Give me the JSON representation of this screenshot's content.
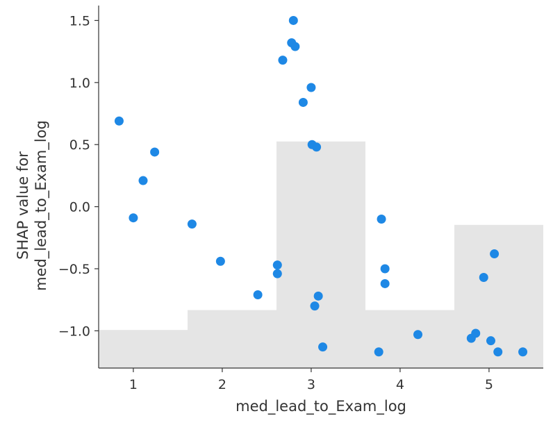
{
  "chart_data": {
    "type": "scatter",
    "title": "",
    "xlabel": "med_lead_to_Exam_log",
    "ylabel_lines": [
      "SHAP value for",
      "med_lead_to_Exam_log"
    ],
    "xlim": [
      0.61,
      5.61
    ],
    "ylim": [
      -1.3,
      1.62
    ],
    "x_ticks": [
      1,
      2,
      3,
      4,
      5
    ],
    "x_tick_labels": [
      "1",
      "2",
      "3",
      "4",
      "5"
    ],
    "y_ticks": [
      -1.0,
      -0.5,
      0.0,
      0.5,
      1.0,
      1.5
    ],
    "y_tick_labels": [
      "−1.0",
      "−0.5",
      "0.0",
      "0.5",
      "1.0",
      "1.5"
    ],
    "grid": false,
    "point_color": "#1e88e5",
    "histogram_color": "#e5e5e5",
    "histogram_bins": [
      {
        "x0": 0.61,
        "x1": 1.61,
        "level": 0.105
      },
      {
        "x0": 1.61,
        "x1": 2.61,
        "level": 0.16
      },
      {
        "x0": 2.61,
        "x1": 3.61,
        "level": 0.625
      },
      {
        "x0": 3.61,
        "x1": 4.61,
        "level": 0.16
      },
      {
        "x0": 4.61,
        "x1": 5.61,
        "level": 0.395
      }
    ],
    "points": [
      {
        "x": 0.84,
        "y": 0.69
      },
      {
        "x": 1.0,
        "y": -0.09
      },
      {
        "x": 1.11,
        "y": 0.21
      },
      {
        "x": 1.24,
        "y": 0.44
      },
      {
        "x": 1.66,
        "y": -0.14
      },
      {
        "x": 1.98,
        "y": -0.44
      },
      {
        "x": 2.4,
        "y": -0.71
      },
      {
        "x": 2.62,
        "y": -0.47
      },
      {
        "x": 2.62,
        "y": -0.54
      },
      {
        "x": 2.68,
        "y": 1.18
      },
      {
        "x": 2.78,
        "y": 1.32
      },
      {
        "x": 2.8,
        "y": 1.5
      },
      {
        "x": 2.82,
        "y": 1.29
      },
      {
        "x": 2.91,
        "y": 0.84
      },
      {
        "x": 3.0,
        "y": 0.96
      },
      {
        "x": 3.01,
        "y": 0.5
      },
      {
        "x": 3.04,
        "y": -0.8
      },
      {
        "x": 3.06,
        "y": 0.48
      },
      {
        "x": 3.08,
        "y": -0.72
      },
      {
        "x": 3.13,
        "y": -1.13
      },
      {
        "x": 3.76,
        "y": -1.17
      },
      {
        "x": 3.79,
        "y": -0.1
      },
      {
        "x": 3.83,
        "y": -0.5
      },
      {
        "x": 3.83,
        "y": -0.62
      },
      {
        "x": 4.2,
        "y": -1.03
      },
      {
        "x": 4.8,
        "y": -1.06
      },
      {
        "x": 4.85,
        "y": -1.02
      },
      {
        "x": 4.94,
        "y": -0.57
      },
      {
        "x": 5.02,
        "y": -1.08
      },
      {
        "x": 5.06,
        "y": -0.38
      },
      {
        "x": 5.1,
        "y": -1.17
      },
      {
        "x": 5.38,
        "y": -1.17
      }
    ]
  }
}
